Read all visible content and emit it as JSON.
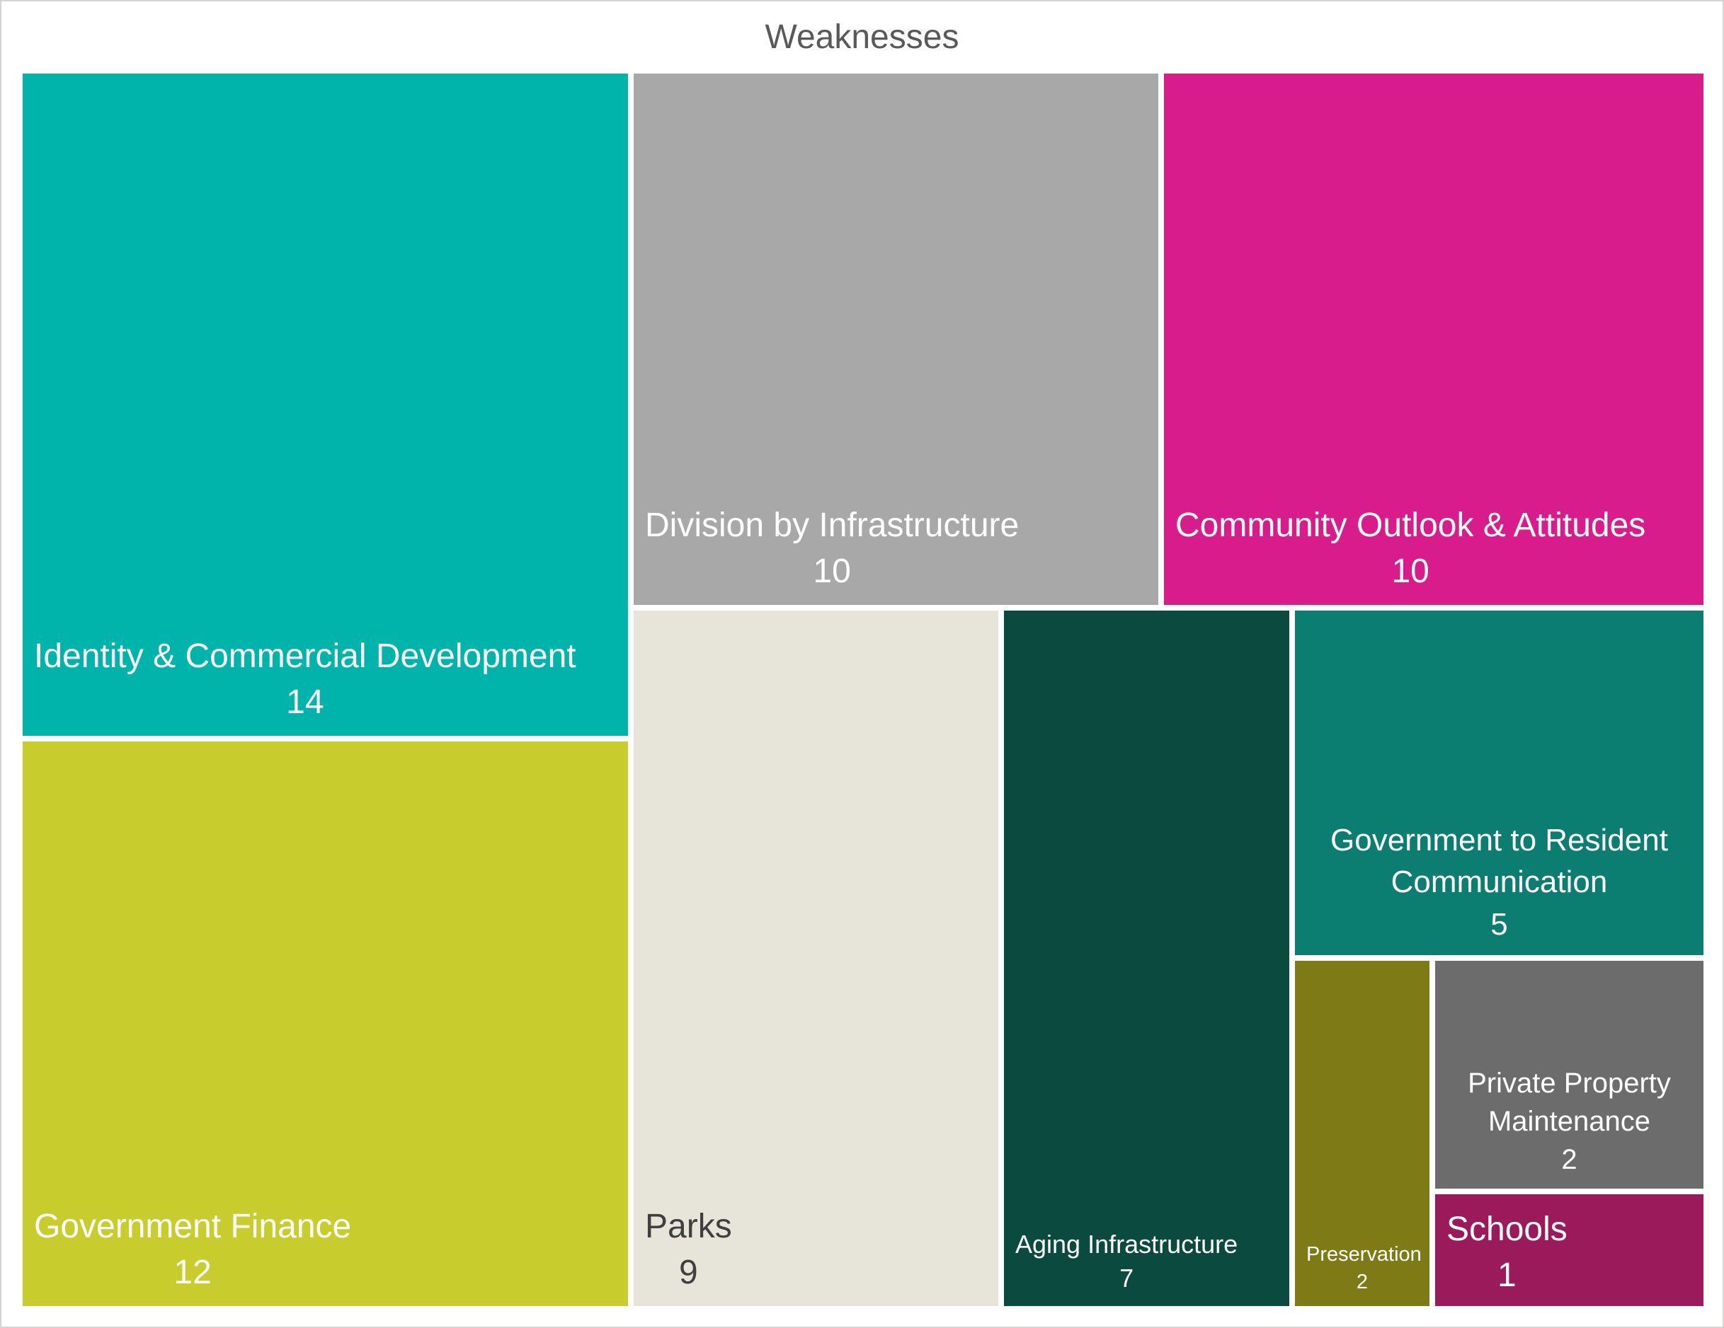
{
  "title": "Weaknesses",
  "canvas": {
    "background": "#ffffff",
    "border_color": "#d6d3d3",
    "title_color": "#595959"
  },
  "chart_data": {
    "type": "treemap",
    "title": "Weaknesses",
    "legend": "none",
    "gutter_color": "#ffffff",
    "items": [
      {
        "name": "Identity & Commercial Development",
        "value": "14",
        "color": "#00B4AC",
        "text_color": "#FFFFFF"
      },
      {
        "name": "Government Finance",
        "value": "12",
        "color": "#C9CC2D",
        "text_color": "#FFFFFF"
      },
      {
        "name": "Division by Infrastructure",
        "value": "10",
        "color": "#A8A8A8",
        "text_color": "#FFFFFF"
      },
      {
        "name": "Community Outlook & Attitudes",
        "value": "10",
        "color": "#D81C8C",
        "text_color": "#FFFFFF"
      },
      {
        "name": "Parks",
        "value": "9",
        "color": "#E7E4DA",
        "text_color": "#3F3F3F"
      },
      {
        "name": "Aging Infrastructure",
        "value": "7",
        "color": "#0B4A3F",
        "text_color": "#FFFFFF"
      },
      {
        "name": "Government to Resident Communication",
        "value": "5",
        "color": "#0C7D71",
        "text_color": "#FFFFFF"
      },
      {
        "name": "Preservation",
        "value": "2",
        "color": "#7E7A16",
        "text_color": "#FFFFFF"
      },
      {
        "name": "Private Property Maintenance",
        "value": "2",
        "color": "#6C6C6C",
        "text_color": "#FFFFFF"
      },
      {
        "name": "Schools",
        "value": "1",
        "color": "#9A1A5C",
        "text_color": "#FFFFFF"
      }
    ]
  }
}
